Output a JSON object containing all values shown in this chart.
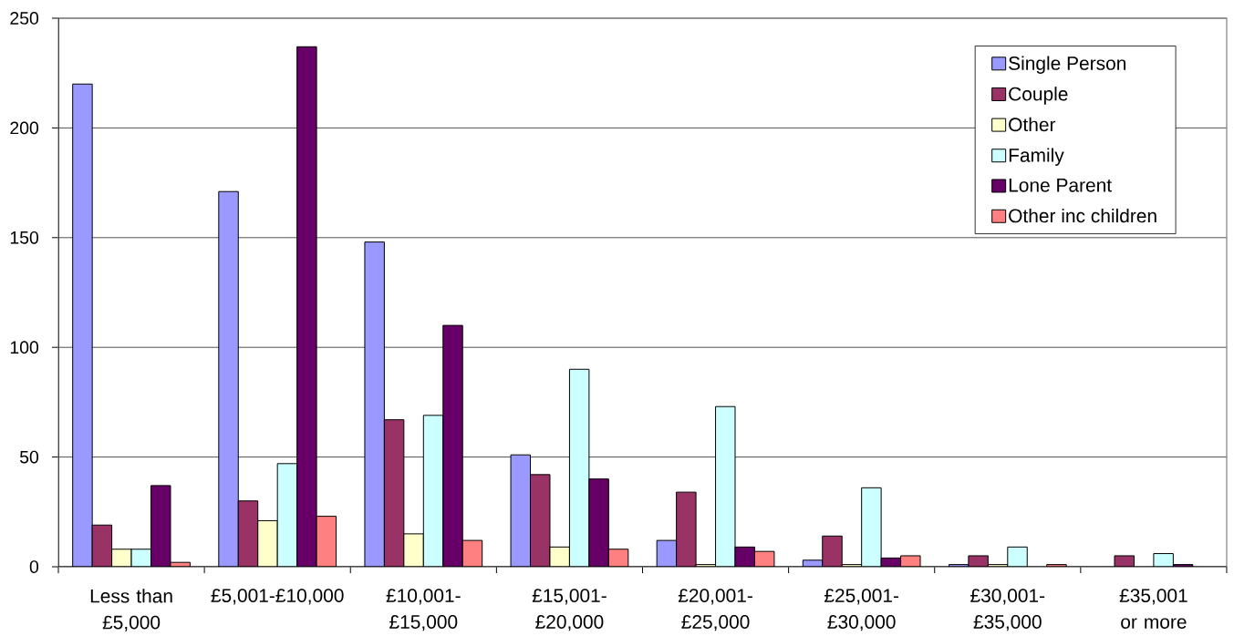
{
  "chart_data": {
    "type": "bar",
    "categories": [
      "Less than £5,000",
      "£5,001-£10,000",
      "£10,001-£15,000",
      "£15,001-£20,000",
      "£20,001-£25,000",
      "£25,001-£30,000",
      "£30,001-£35,000",
      "£35,001 or more"
    ],
    "series": [
      {
        "name": "Single Person",
        "color": "#9999ff",
        "values": [
          220,
          171,
          148,
          51,
          12,
          3,
          1,
          null
        ]
      },
      {
        "name": "Couple",
        "color": "#993366",
        "values": [
          19,
          30,
          67,
          42,
          34,
          14,
          5,
          5
        ]
      },
      {
        "name": "Other",
        "color": "#ffffcc",
        "values": [
          8,
          21,
          15,
          9,
          1,
          1,
          1,
          null
        ]
      },
      {
        "name": "Family",
        "color": "#ccffff",
        "values": [
          8,
          47,
          69,
          90,
          73,
          36,
          9,
          6
        ]
      },
      {
        "name": "Lone Parent",
        "color": "#660066",
        "values": [
          37,
          237,
          110,
          40,
          9,
          4,
          null,
          1
        ]
      },
      {
        "name": "Other inc children",
        "color": "#ff8080",
        "values": [
          2,
          23,
          12,
          8,
          7,
          5,
          1,
          null
        ]
      }
    ],
    "ylim": [
      0,
      250
    ],
    "yticks": [
      0,
      50,
      100,
      150,
      200,
      250
    ],
    "grid": "y",
    "legend": "top right"
  }
}
